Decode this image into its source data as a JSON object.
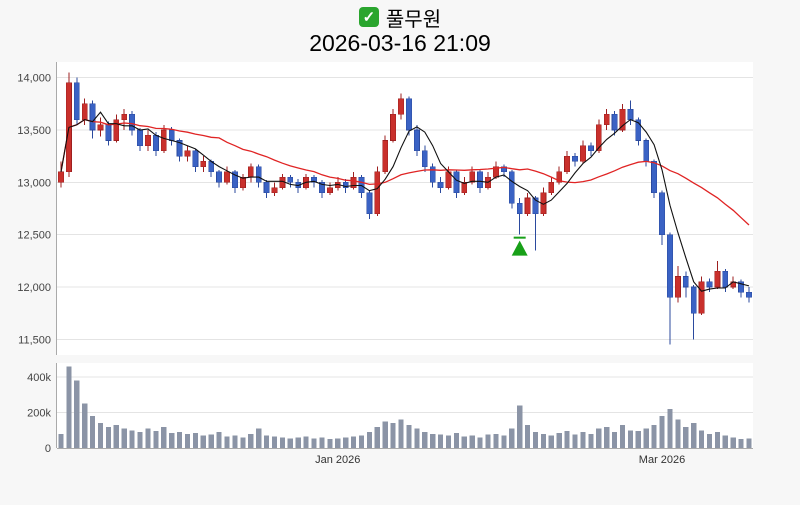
{
  "header": {
    "title": "풀무원",
    "check_glyph": "✓",
    "checkbox_icon": "checked-checkbox-icon",
    "datetime": "2026-03-16 21:09"
  },
  "colors": {
    "up": "#c9302c",
    "up_border": "#9e1f1f",
    "down": "#3a62c4",
    "down_border": "#2b4a9e",
    "ma_short": "#111111",
    "ma_long": "#e02424",
    "volume_bar": "#8b94a6",
    "marker": "#18a018",
    "grid": "#e4e4e4",
    "axis": "#aaaaaa",
    "plot_bg": "#ffffff",
    "page_bg": "#f7f7f7"
  },
  "chart_data": {
    "type": "candlestick",
    "title": "풀무원",
    "timestamp": "2026-03-16 21:09",
    "legend_position": "none",
    "grid": true,
    "price_axis": {
      "tick_values": [
        14000,
        13500,
        13000,
        12500,
        12000,
        11500
      ],
      "tick_labels": [
        "14,000",
        "13,500",
        "13,000",
        "12,500",
        "12,000",
        "11,500"
      ],
      "range": [
        11350,
        14150
      ]
    },
    "volume_axis": {
      "tick_values": [
        400,
        200,
        0
      ],
      "tick_labels": [
        "400k",
        "200k",
        "0"
      ],
      "range": [
        0,
        480
      ],
      "unit": "thousands"
    },
    "x_labels": [
      {
        "label": "Jan 2026",
        "index": 35
      },
      {
        "label": "Mar 2026",
        "index": 76
      }
    ],
    "marker": {
      "type": "buy-triangle-up",
      "index": 58,
      "price": 12500
    },
    "ma_windows": {
      "short": 5,
      "long": 20
    },
    "candles_ohlcv_volK": [
      [
        13000,
        13200,
        12950,
        13100,
        80
      ],
      [
        13100,
        14050,
        13050,
        13950,
        460
      ],
      [
        13950,
        14000,
        13550,
        13600,
        380
      ],
      [
        13600,
        13800,
        13550,
        13750,
        250
      ],
      [
        13750,
        13780,
        13420,
        13500,
        180
      ],
      [
        13500,
        13620,
        13440,
        13550,
        140
      ],
      [
        13550,
        13580,
        13350,
        13400,
        120
      ],
      [
        13400,
        13650,
        13380,
        13600,
        130
      ],
      [
        13600,
        13700,
        13500,
        13650,
        110
      ],
      [
        13650,
        13680,
        13450,
        13500,
        100
      ],
      [
        13500,
        13520,
        13300,
        13350,
        90
      ],
      [
        13350,
        13500,
        13300,
        13450,
        110
      ],
      [
        13450,
        13480,
        13250,
        13300,
        95
      ],
      [
        13300,
        13550,
        13280,
        13500,
        120
      ],
      [
        13500,
        13530,
        13350,
        13400,
        85
      ],
      [
        13400,
        13420,
        13200,
        13250,
        90
      ],
      [
        13250,
        13350,
        13200,
        13300,
        80
      ],
      [
        13300,
        13320,
        13100,
        13150,
        85
      ],
      [
        13150,
        13250,
        13100,
        13200,
        70
      ],
      [
        13200,
        13220,
        13050,
        13100,
        75
      ],
      [
        13100,
        13120,
        12950,
        13000,
        90
      ],
      [
        13000,
        13150,
        12980,
        13100,
        65
      ],
      [
        13100,
        13120,
        12900,
        12950,
        70
      ],
      [
        12950,
        13080,
        12920,
        13050,
        60
      ],
      [
        13050,
        13180,
        13000,
        13150,
        80
      ],
      [
        13150,
        13170,
        12950,
        13000,
        110
      ],
      [
        13000,
        13020,
        12850,
        12900,
        70
      ],
      [
        12900,
        13000,
        12870,
        12950,
        65
      ],
      [
        12950,
        13080,
        12930,
        13050,
        60
      ],
      [
        13050,
        13070,
        12950,
        13000,
        55
      ],
      [
        13000,
        13030,
        12900,
        12950,
        60
      ],
      [
        12950,
        13080,
        12930,
        13050,
        65
      ],
      [
        13050,
        13070,
        12950,
        13000,
        55
      ],
      [
        13000,
        13020,
        12850,
        12900,
        60
      ],
      [
        12900,
        13000,
        12880,
        12950,
        50
      ],
      [
        12950,
        13050,
        12920,
        13000,
        55
      ],
      [
        13000,
        13030,
        12900,
        12950,
        60
      ],
      [
        12950,
        13100,
        12930,
        13050,
        65
      ],
      [
        13050,
        13070,
        12850,
        12900,
        70
      ],
      [
        12900,
        12920,
        12650,
        12700,
        90
      ],
      [
        12700,
        13150,
        12680,
        13100,
        120
      ],
      [
        13100,
        13450,
        13080,
        13400,
        150
      ],
      [
        13400,
        13700,
        13380,
        13650,
        140
      ],
      [
        13650,
        13850,
        13600,
        13800,
        160
      ],
      [
        13800,
        13820,
        13450,
        13500,
        130
      ],
      [
        13500,
        13550,
        13250,
        13300,
        110
      ],
      [
        13300,
        13350,
        13100,
        13150,
        90
      ],
      [
        13150,
        13180,
        12950,
        13000,
        80
      ],
      [
        13000,
        13050,
        12900,
        12950,
        75
      ],
      [
        12950,
        13150,
        12930,
        13100,
        70
      ],
      [
        13100,
        13120,
        12850,
        12900,
        85
      ],
      [
        12900,
        13050,
        12880,
        13000,
        65
      ],
      [
        13000,
        13150,
        12980,
        13100,
        70
      ],
      [
        13100,
        13120,
        12900,
        12950,
        60
      ],
      [
        12950,
        13100,
        12930,
        13050,
        75
      ],
      [
        13050,
        13200,
        13030,
        13150,
        80
      ],
      [
        13150,
        13170,
        13050,
        13100,
        70
      ],
      [
        13100,
        13120,
        12750,
        12800,
        110
      ],
      [
        12800,
        12850,
        12500,
        12700,
        240
      ],
      [
        12700,
        12900,
        12680,
        12850,
        130
      ],
      [
        12850,
        12870,
        12350,
        12700,
        90
      ],
      [
        12700,
        12950,
        12680,
        12900,
        80
      ],
      [
        12900,
        13050,
        12880,
        13000,
        70
      ],
      [
        13000,
        13150,
        12980,
        13100,
        85
      ],
      [
        13100,
        13300,
        13080,
        13250,
        95
      ],
      [
        13250,
        13280,
        13150,
        13200,
        75
      ],
      [
        13200,
        13400,
        13180,
        13350,
        90
      ],
      [
        13350,
        13380,
        13250,
        13300,
        80
      ],
      [
        13300,
        13600,
        13280,
        13550,
        110
      ],
      [
        13550,
        13700,
        13500,
        13650,
        120
      ],
      [
        13650,
        13680,
        13450,
        13500,
        90
      ],
      [
        13500,
        13750,
        13480,
        13700,
        130
      ],
      [
        13700,
        13780,
        13550,
        13600,
        100
      ],
      [
        13600,
        13620,
        13350,
        13400,
        95
      ],
      [
        13400,
        13420,
        13150,
        13200,
        110
      ],
      [
        13200,
        13220,
        12850,
        12900,
        130
      ],
      [
        12900,
        12920,
        12400,
        12500,
        180
      ],
      [
        12500,
        12520,
        11450,
        11900,
        220
      ],
      [
        11900,
        12200,
        11850,
        12100,
        160
      ],
      [
        12100,
        12150,
        11900,
        12000,
        120
      ],
      [
        12000,
        12020,
        11500,
        11750,
        140
      ],
      [
        11750,
        12100,
        11730,
        12050,
        100
      ],
      [
        12050,
        12080,
        11950,
        12000,
        80
      ],
      [
        12000,
        12250,
        11980,
        12150,
        90
      ],
      [
        12150,
        12170,
        11950,
        12000,
        70
      ],
      [
        12000,
        12100,
        11980,
        12050,
        60
      ],
      [
        12050,
        12070,
        11900,
        11950,
        50
      ],
      [
        11950,
        12000,
        11850,
        11900,
        55
      ]
    ]
  }
}
